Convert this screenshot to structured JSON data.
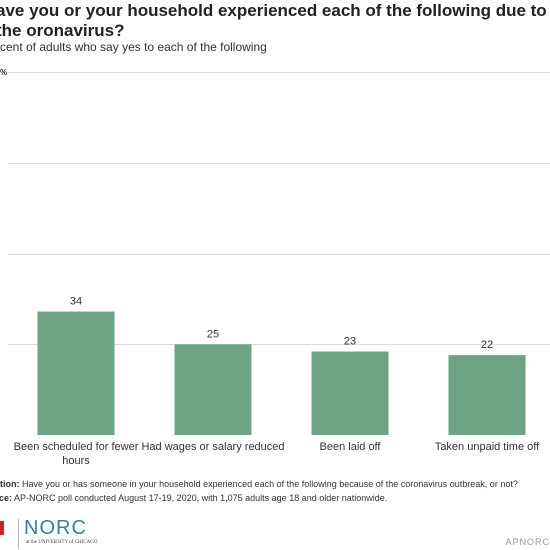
{
  "chart_data": {
    "type": "bar",
    "title": "ave you or your household experienced each of the following due to the oronavirus?",
    "subtitle": "rcent of adults who say yes to each of the following",
    "categories": [
      [
        "Been scheduled for fewer",
        "hours"
      ],
      [
        "Had wages or salary reduced"
      ],
      [
        "Been laid off"
      ],
      [
        "Taken unpaid time off"
      ]
    ],
    "values": [
      34,
      25,
      23,
      22
    ],
    "value_labels": [
      "34",
      "25",
      "23",
      "22"
    ],
    "ylim": [
      0,
      100
    ],
    "y_ticks": [
      0,
      25,
      50,
      75,
      100
    ],
    "top_tick_label": "%",
    "grid": true,
    "bar_color": "#6fa386"
  },
  "footnotes": {
    "question_label": "estion:",
    "question_text": " Have you or has someone in your household experienced each of the following because of the coronavirus outbreak, or not?",
    "source_label": "urce:",
    "source_text": " AP-NORC poll conducted August 17-19, 2020, with 1,075 adults age 18 and older nationwide."
  },
  "logos": {
    "norc": "NORC",
    "norc_sub": "at the UNIVERSITY of CHICAGO",
    "brand_right": "APNORC"
  }
}
